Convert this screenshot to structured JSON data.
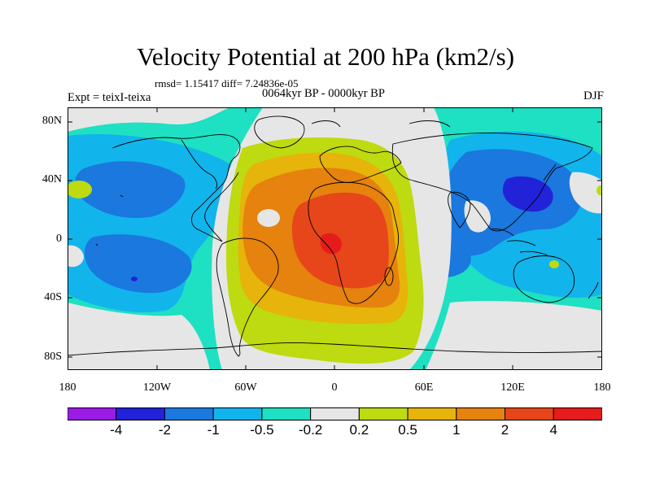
{
  "title": "Velocity Potential at 200 hPa (km2/s)",
  "stats_line": "rmsd= 1.15417 diff= 7.24836e-05",
  "experiment": "Expt = teixI-teixa",
  "period": "0064kyr BP - 0000kyr BP",
  "season": "DJF",
  "lat_labels": [
    "80N",
    "40N",
    "0",
    "40S",
    "80S"
  ],
  "lon_labels": [
    "180",
    "120W",
    "60W",
    "0",
    "60E",
    "120E",
    "180"
  ],
  "colorbar": {
    "labels": [
      "-4",
      "-2",
      "-1",
      "-0.5",
      "-0.2",
      "0.2",
      "0.5",
      "1",
      "2",
      "4"
    ],
    "colors": [
      "#9B1BE6",
      "#2222D8",
      "#1A78DE",
      "#12B4EC",
      "#1EE0C2",
      "#E6E6E6",
      "#BEDA10",
      "#E6B40A",
      "#E6820E",
      "#E6461A",
      "#E61C1C"
    ]
  },
  "map": {
    "contour_levels": [
      -4,
      -2,
      -1,
      -0.5,
      -0.2,
      0.2,
      0.5,
      1,
      2,
      4
    ],
    "coastline_color": "#000000",
    "features": [
      {
        "region": "tropical Atlantic / Africa",
        "value": 2.5,
        "sign": "positive"
      },
      {
        "region": "central Pacific",
        "value": -0.8,
        "sign": "negative"
      },
      {
        "region": "western Pacific / east Asia",
        "value": -2.2,
        "sign": "negative"
      },
      {
        "region": "Indian Ocean",
        "value": -1.0,
        "sign": "negative"
      },
      {
        "region": "Southern Ocean (South Atlantic)",
        "value": 0.4,
        "sign": "positive"
      }
    ]
  }
}
